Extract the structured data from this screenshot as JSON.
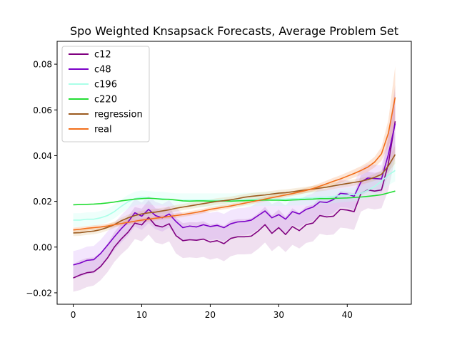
{
  "chart_data": {
    "type": "line",
    "title": "Spo Weighted Knsapsack Forecasts, Average Problem Set",
    "xlabel": "",
    "ylabel": "",
    "xlim": [
      -2.35,
      49.35
    ],
    "ylim": [
      -0.025,
      0.09
    ],
    "x_ticks": [
      0,
      10,
      20,
      30,
      40
    ],
    "x_tick_labels": [
      "0",
      "10",
      "20",
      "30",
      "40"
    ],
    "y_ticks": [
      -0.02,
      0.0,
      0.02,
      0.04,
      0.06,
      0.08
    ],
    "y_tick_labels": [
      "−0.02",
      "0.00",
      "0.02",
      "0.04",
      "0.06",
      "0.08"
    ],
    "grid": false,
    "legend_position": "top-left",
    "x": [
      0,
      1,
      2,
      3,
      4,
      5,
      6,
      7,
      8,
      9,
      10,
      11,
      12,
      13,
      14,
      15,
      16,
      17,
      18,
      19,
      20,
      21,
      22,
      23,
      24,
      25,
      26,
      27,
      28,
      29,
      30,
      31,
      32,
      33,
      34,
      35,
      36,
      37,
      38,
      39,
      40,
      41,
      42,
      43,
      44,
      45,
      46,
      47
    ],
    "series": [
      {
        "name": "c12",
        "color": "#800080",
        "band_color": "#800080",
        "band_opacity": 0.12,
        "values": [
          -0.0135,
          -0.0122,
          -0.0112,
          -0.0108,
          -0.0085,
          -0.0048,
          0.0,
          0.0035,
          0.0065,
          0.0105,
          0.0097,
          0.013,
          0.0095,
          0.0088,
          0.0102,
          0.005,
          0.0028,
          0.0032,
          0.003,
          0.0035,
          0.0022,
          0.0028,
          0.0015,
          0.0038,
          0.0045,
          0.0045,
          0.0048,
          0.007,
          0.0098,
          0.006,
          0.0085,
          0.0055,
          0.009,
          0.0072,
          0.0098,
          0.0105,
          0.0138,
          0.0132,
          0.0135,
          0.0165,
          0.0162,
          0.0155,
          0.0235,
          0.025,
          0.0245,
          0.025,
          0.0365,
          0.055
        ],
        "lower": [
          -0.0195,
          -0.0188,
          -0.0175,
          -0.0168,
          -0.0145,
          -0.011,
          -0.0065,
          -0.0032,
          -0.0005,
          0.0035,
          0.0025,
          0.0055,
          0.002,
          0.0012,
          0.0025,
          -0.0028,
          -0.0048,
          -0.0045,
          -0.0048,
          -0.0043,
          -0.0055,
          -0.0048,
          -0.0062,
          -0.004,
          -0.0032,
          -0.0032,
          -0.003,
          -0.0008,
          0.002,
          -0.0018,
          0.0006,
          -0.0022,
          0.001,
          -0.0006,
          0.0018,
          0.0025,
          0.0058,
          0.0052,
          0.0055,
          0.0085,
          0.0082,
          0.0075,
          0.0155,
          0.017,
          0.0165,
          0.017,
          0.025,
          0.039
        ],
        "upper": [
          -0.0075,
          -0.0058,
          -0.0048,
          -0.0045,
          -0.0025,
          0.0014,
          0.0065,
          0.0102,
          0.0135,
          0.0175,
          0.0168,
          0.0205,
          0.017,
          0.0164,
          0.0178,
          0.0128,
          0.0105,
          0.0109,
          0.0108,
          0.0113,
          0.0099,
          0.0104,
          0.0092,
          0.0116,
          0.0122,
          0.0122,
          0.0126,
          0.0148,
          0.0176,
          0.0138,
          0.0164,
          0.0132,
          0.017,
          0.015,
          0.0178,
          0.0185,
          0.0218,
          0.0212,
          0.0215,
          0.0245,
          0.0242,
          0.0235,
          0.0315,
          0.033,
          0.0325,
          0.033,
          0.048,
          0.071
        ]
      },
      {
        "name": "c48",
        "color": "#7b00c8",
        "band_color": "#9933ee",
        "band_opacity": 0.12,
        "values": [
          -0.0078,
          -0.007,
          -0.0058,
          -0.0055,
          -0.0028,
          0.0008,
          0.0045,
          0.008,
          0.011,
          0.015,
          0.0135,
          0.0165,
          0.0138,
          0.0128,
          0.0145,
          0.0112,
          0.0085,
          0.0092,
          0.0088,
          0.0098,
          0.009,
          0.0095,
          0.0085,
          0.0102,
          0.011,
          0.0112,
          0.0118,
          0.0138,
          0.0158,
          0.0128,
          0.0142,
          0.0122,
          0.0155,
          0.0145,
          0.0165,
          0.0175,
          0.0198,
          0.0195,
          0.0208,
          0.0235,
          0.0232,
          0.0222,
          0.0285,
          0.0302,
          0.03,
          0.0298,
          0.0405,
          0.054
        ],
        "lower": [
          -0.0138,
          -0.013,
          -0.0118,
          -0.0115,
          -0.0088,
          -0.0052,
          -0.0015,
          0.002,
          0.005,
          0.009,
          0.0075,
          0.0105,
          0.0078,
          0.0068,
          0.0085,
          0.0052,
          0.0025,
          0.0032,
          0.0028,
          0.0038,
          0.003,
          0.0035,
          0.0025,
          0.0042,
          0.005,
          0.0052,
          0.0058,
          0.0078,
          0.0098,
          0.0068,
          0.0082,
          0.0062,
          0.0095,
          0.0085,
          0.0105,
          0.0115,
          0.0138,
          0.0135,
          0.0148,
          0.0175,
          0.0172,
          0.0162,
          0.0225,
          0.0242,
          0.024,
          0.0238,
          0.0315,
          0.041
        ],
        "upper": [
          -0.0018,
          -0.001,
          0.0002,
          0.0005,
          0.0032,
          0.0068,
          0.0105,
          0.014,
          0.017,
          0.021,
          0.0195,
          0.0225,
          0.0198,
          0.0188,
          0.0205,
          0.0172,
          0.0145,
          0.0152,
          0.0148,
          0.0158,
          0.015,
          0.0155,
          0.0145,
          0.0162,
          0.017,
          0.0172,
          0.0178,
          0.0198,
          0.0218,
          0.0188,
          0.0202,
          0.0182,
          0.0215,
          0.0205,
          0.0225,
          0.0235,
          0.0258,
          0.0255,
          0.0268,
          0.0295,
          0.0292,
          0.0282,
          0.0345,
          0.0362,
          0.036,
          0.0358,
          0.0495,
          0.068
        ]
      },
      {
        "name": "c196",
        "color": "#aaffe8",
        "band_color": "#bbffee",
        "band_opacity": 0.25,
        "values": [
          0.0118,
          0.0118,
          0.0122,
          0.0122,
          0.0128,
          0.0138,
          0.0155,
          0.0178,
          0.0198,
          0.0212,
          0.0218,
          0.0215,
          0.0212,
          0.0212,
          0.0208,
          0.0205,
          0.0205,
          0.0205,
          0.0205,
          0.0205,
          0.0205,
          0.0205,
          0.0205,
          0.0205,
          0.0205,
          0.0208,
          0.0208,
          0.021,
          0.021,
          0.021,
          0.021,
          0.021,
          0.0212,
          0.0212,
          0.0215,
          0.0215,
          0.0218,
          0.0218,
          0.0222,
          0.0225,
          0.0228,
          0.023,
          0.0235,
          0.0248,
          0.0265,
          0.0288,
          0.0315,
          0.0335
        ],
        "lower": [
          0.0088,
          0.0088,
          0.0092,
          0.0092,
          0.0098,
          0.0108,
          0.0125,
          0.0148,
          0.0168,
          0.0182,
          0.0188,
          0.0185,
          0.0182,
          0.0182,
          0.0178,
          0.0175,
          0.0175,
          0.0175,
          0.0175,
          0.0175,
          0.0175,
          0.0175,
          0.0175,
          0.0175,
          0.0175,
          0.0178,
          0.0178,
          0.018,
          0.018,
          0.018,
          0.018,
          0.018,
          0.0182,
          0.0182,
          0.0185,
          0.0185,
          0.0188,
          0.0188,
          0.0192,
          0.0195,
          0.0198,
          0.02,
          0.0205,
          0.0215,
          0.0228,
          0.0248,
          0.027,
          0.0288
        ],
        "upper": [
          0.0148,
          0.0148,
          0.0152,
          0.0152,
          0.0158,
          0.0168,
          0.0185,
          0.0208,
          0.0228,
          0.0242,
          0.0248,
          0.0245,
          0.0242,
          0.0242,
          0.0238,
          0.0235,
          0.0235,
          0.0235,
          0.0235,
          0.0235,
          0.0235,
          0.0235,
          0.0235,
          0.0235,
          0.0235,
          0.0238,
          0.0238,
          0.024,
          0.024,
          0.024,
          0.024,
          0.024,
          0.0242,
          0.0242,
          0.0245,
          0.0245,
          0.0248,
          0.0248,
          0.0252,
          0.0255,
          0.0258,
          0.026,
          0.0265,
          0.0281,
          0.0302,
          0.0328,
          0.036,
          0.0382
        ]
      },
      {
        "name": "c220",
        "color": "#22dd33",
        "band_color": "#22dd33",
        "band_opacity": 0.0,
        "values": [
          0.0185,
          0.0186,
          0.0187,
          0.0188,
          0.019,
          0.0193,
          0.0197,
          0.0202,
          0.0206,
          0.021,
          0.0212,
          0.0214,
          0.0212,
          0.0209,
          0.0209,
          0.0206,
          0.0202,
          0.0201,
          0.0202,
          0.0202,
          0.0201,
          0.0201,
          0.0202,
          0.0201,
          0.0202,
          0.0203,
          0.0204,
          0.0204,
          0.0206,
          0.0205,
          0.0205,
          0.0204,
          0.0206,
          0.0207,
          0.0209,
          0.021,
          0.0212,
          0.0212,
          0.0213,
          0.0214,
          0.0215,
          0.0217,
          0.0219,
          0.0222,
          0.0225,
          0.0229,
          0.0237,
          0.0245
        ],
        "lower": [],
        "upper": []
      },
      {
        "name": "regression",
        "color": "#9b5a1e",
        "band_color": "#d4a050",
        "band_opacity": 0.18,
        "values": [
          0.0062,
          0.0063,
          0.0067,
          0.007,
          0.0076,
          0.0086,
          0.0098,
          0.0115,
          0.0128,
          0.0138,
          0.0145,
          0.015,
          0.0153,
          0.0158,
          0.0163,
          0.017,
          0.0175,
          0.018,
          0.0185,
          0.019,
          0.0195,
          0.02,
          0.0203,
          0.0207,
          0.0212,
          0.0218,
          0.0222,
          0.0225,
          0.0228,
          0.0232,
          0.0236,
          0.0238,
          0.0242,
          0.0246,
          0.025,
          0.0254,
          0.0258,
          0.0262,
          0.0268,
          0.0273,
          0.0278,
          0.0283,
          0.0288,
          0.0295,
          0.0305,
          0.0318,
          0.0355,
          0.0405
        ],
        "lower": [
          0.0048,
          0.0049,
          0.0053,
          0.0056,
          0.0062,
          0.0072,
          0.0084,
          0.0101,
          0.0114,
          0.0124,
          0.0131,
          0.0136,
          0.0139,
          0.0144,
          0.0149,
          0.0156,
          0.0161,
          0.0166,
          0.0171,
          0.0176,
          0.0181,
          0.0186,
          0.0189,
          0.0193,
          0.0198,
          0.0204,
          0.0208,
          0.0211,
          0.0214,
          0.0218,
          0.0222,
          0.0224,
          0.0228,
          0.0232,
          0.0236,
          0.024,
          0.0244,
          0.0248,
          0.0254,
          0.0259,
          0.0264,
          0.0269,
          0.0274,
          0.0281,
          0.029,
          0.03,
          0.0328,
          0.0365
        ],
        "upper": [
          0.0076,
          0.0077,
          0.0081,
          0.0084,
          0.009,
          0.01,
          0.0112,
          0.0129,
          0.0142,
          0.0152,
          0.0159,
          0.0164,
          0.0167,
          0.0172,
          0.0177,
          0.0184,
          0.0189,
          0.0194,
          0.0199,
          0.0204,
          0.0209,
          0.0214,
          0.0217,
          0.0221,
          0.0226,
          0.0232,
          0.0236,
          0.0239,
          0.0242,
          0.0246,
          0.025,
          0.0252,
          0.0256,
          0.026,
          0.0264,
          0.0268,
          0.0272,
          0.0276,
          0.0282,
          0.0287,
          0.0292,
          0.0297,
          0.0302,
          0.0309,
          0.032,
          0.0336,
          0.0382,
          0.0445
        ]
      },
      {
        "name": "real",
        "color": "#f26e1a",
        "band_color": "#f26e1a",
        "band_opacity": 0.18,
        "values": [
          0.0075,
          0.0078,
          0.0082,
          0.0085,
          0.0088,
          0.0092,
          0.0098,
          0.0103,
          0.0108,
          0.0113,
          0.0118,
          0.0122,
          0.0126,
          0.013,
          0.0134,
          0.0138,
          0.0142,
          0.0147,
          0.0152,
          0.0158,
          0.0165,
          0.017,
          0.0175,
          0.018,
          0.0186,
          0.0192,
          0.0198,
          0.0204,
          0.021,
          0.0216,
          0.0222,
          0.0228,
          0.0234,
          0.0241,
          0.0248,
          0.0256,
          0.0266,
          0.0277,
          0.0288,
          0.0298,
          0.031,
          0.0322,
          0.0335,
          0.035,
          0.0372,
          0.0408,
          0.0498,
          0.0655
        ],
        "lower": [
          0.0065,
          0.0068,
          0.0072,
          0.0075,
          0.0078,
          0.0082,
          0.0088,
          0.0093,
          0.0098,
          0.0103,
          0.0108,
          0.0112,
          0.0116,
          0.012,
          0.0124,
          0.0128,
          0.0132,
          0.0137,
          0.0142,
          0.0148,
          0.0155,
          0.016,
          0.0165,
          0.017,
          0.0176,
          0.0182,
          0.0188,
          0.0194,
          0.02,
          0.0206,
          0.0212,
          0.0218,
          0.0224,
          0.023,
          0.0237,
          0.0244,
          0.0253,
          0.0263,
          0.0273,
          0.0282,
          0.0293,
          0.0304,
          0.0316,
          0.0329,
          0.0349,
          0.0378,
          0.044,
          0.052
        ],
        "upper": [
          0.0085,
          0.0088,
          0.0092,
          0.0095,
          0.0098,
          0.0102,
          0.0108,
          0.0113,
          0.0118,
          0.0123,
          0.0128,
          0.0132,
          0.0136,
          0.014,
          0.0144,
          0.0148,
          0.0152,
          0.0157,
          0.0162,
          0.0168,
          0.0175,
          0.018,
          0.0185,
          0.019,
          0.0196,
          0.0202,
          0.0208,
          0.0214,
          0.022,
          0.0226,
          0.0232,
          0.0238,
          0.0244,
          0.0252,
          0.0259,
          0.0268,
          0.0279,
          0.0291,
          0.0303,
          0.0314,
          0.0327,
          0.034,
          0.0354,
          0.0371,
          0.0395,
          0.0438,
          0.0556,
          0.079
        ]
      }
    ]
  }
}
